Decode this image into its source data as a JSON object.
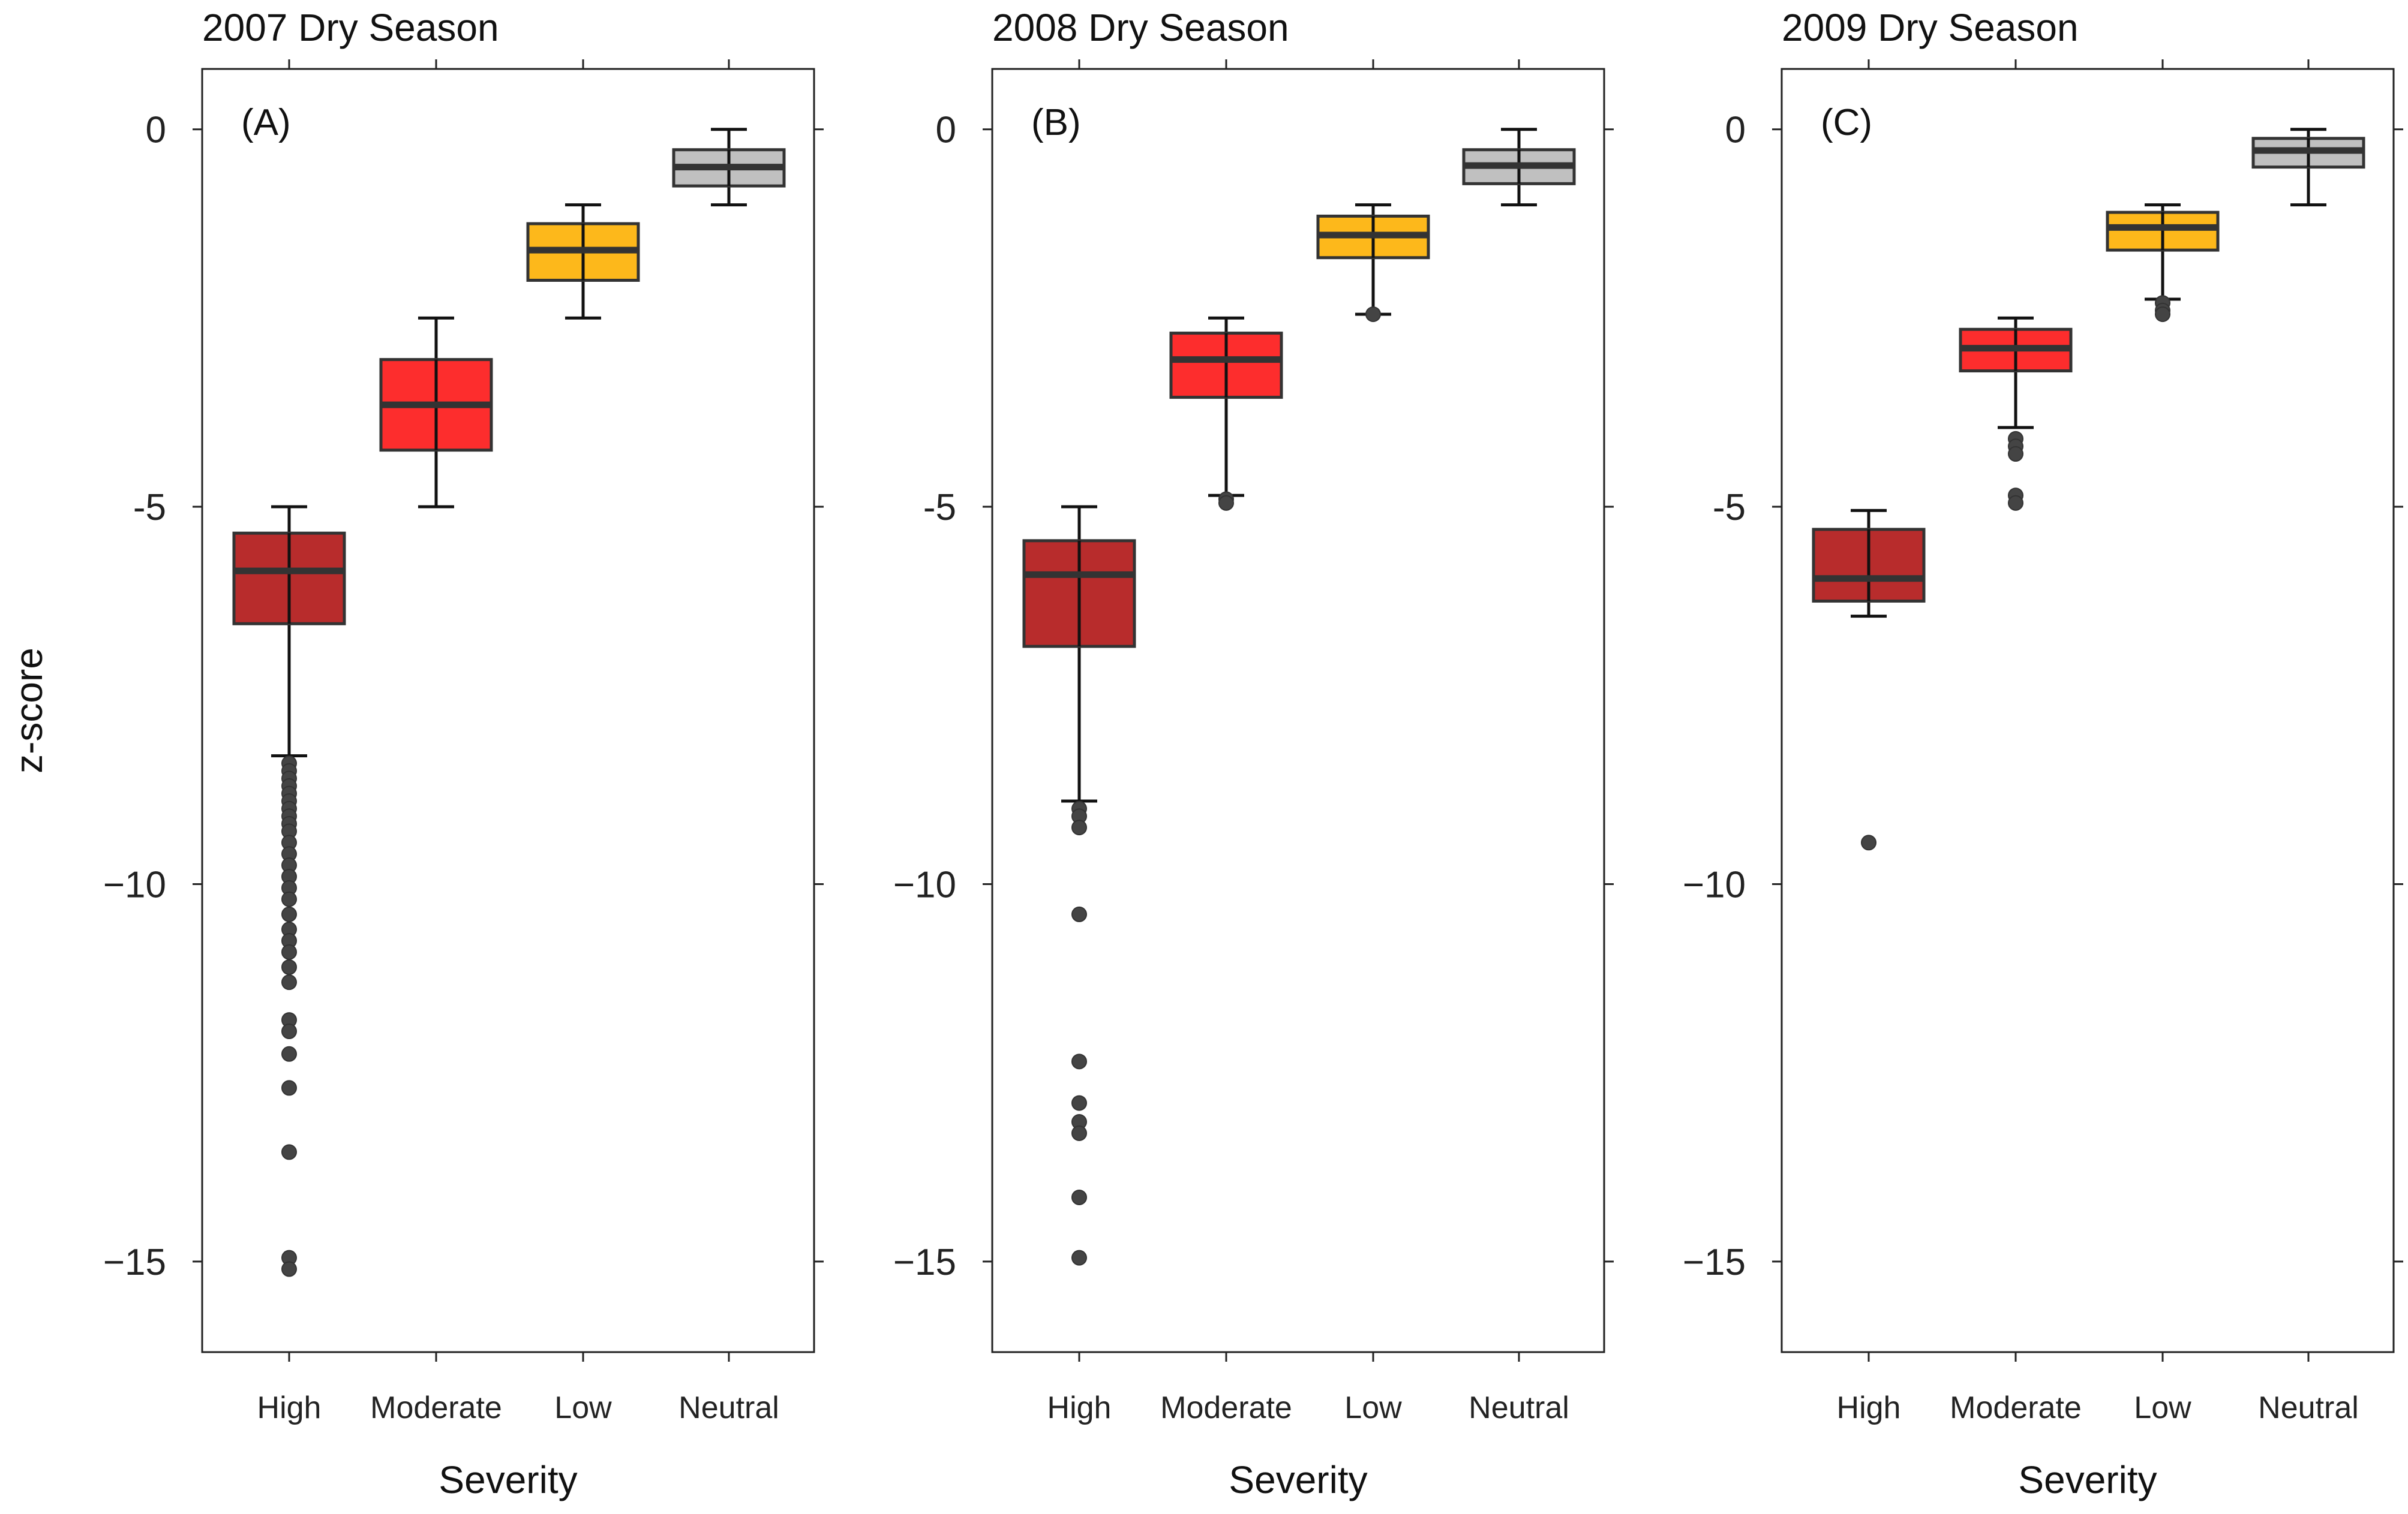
{
  "chart_data": [
    {
      "type": "boxplot",
      "title": "2007 Dry Season",
      "panel_label": "(A)",
      "xlabel": "Severity",
      "ylabel": "z-score",
      "categories": [
        "High",
        "Moderate",
        "Low",
        "Neutral"
      ],
      "colors": [
        "#b82c2c",
        "#fd2d2d",
        "#fdb81b",
        "#c0c0c0"
      ],
      "ylim": [
        -16.2,
        0.8
      ],
      "yticks": [
        0,
        -5,
        -10,
        -15
      ],
      "ytick_labels": [
        "0",
        "-5",
        "−10",
        "−15"
      ],
      "boxes": [
        {
          "category": "High",
          "q1": -6.55,
          "median": -5.85,
          "q3": -5.35,
          "whisker_low": -8.3,
          "whisker_high": -5.0,
          "outliers": [
            -8.4,
            -8.5,
            -8.6,
            -8.7,
            -8.8,
            -8.9,
            -9.0,
            -9.1,
            -9.2,
            -9.3,
            -9.45,
            -9.6,
            -9.75,
            -9.9,
            -10.05,
            -10.2,
            -10.4,
            -10.6,
            -10.75,
            -10.9,
            -11.1,
            -11.3,
            -11.8,
            -11.95,
            -12.25,
            -12.7,
            -13.55,
            -14.95,
            -15.1
          ]
        },
        {
          "category": "Moderate",
          "q1": -4.25,
          "median": -3.65,
          "q3": -3.05,
          "whisker_low": -5.0,
          "whisker_high": -2.5,
          "outliers": []
        },
        {
          "category": "Low",
          "q1": -2.0,
          "median": -1.6,
          "q3": -1.25,
          "whisker_low": -2.5,
          "whisker_high": -1.0,
          "outliers": []
        },
        {
          "category": "Neutral",
          "q1": -0.75,
          "median": -0.5,
          "q3": -0.27,
          "whisker_low": -1.0,
          "whisker_high": 0.0,
          "outliers": []
        }
      ]
    },
    {
      "type": "boxplot",
      "title": "2008 Dry Season",
      "panel_label": "(B)",
      "xlabel": "Severity",
      "ylabel": "",
      "categories": [
        "High",
        "Moderate",
        "Low",
        "Neutral"
      ],
      "colors": [
        "#b82c2c",
        "#fd2d2d",
        "#fdb81b",
        "#c0c0c0"
      ],
      "ylim": [
        -16.2,
        0.8
      ],
      "yticks": [
        0,
        -5,
        -10,
        -15
      ],
      "ytick_labels": [
        "0",
        "-5",
        "−10",
        "−15"
      ],
      "boxes": [
        {
          "category": "High",
          "q1": -6.85,
          "median": -5.9,
          "q3": -5.45,
          "whisker_low": -8.9,
          "whisker_high": -5.0,
          "outliers": [
            -9.0,
            -9.1,
            -9.25,
            -10.4,
            -12.35,
            -12.9,
            -13.15,
            -13.3,
            -14.15,
            -14.95
          ]
        },
        {
          "category": "Moderate",
          "q1": -3.55,
          "median": -3.05,
          "q3": -2.7,
          "whisker_low": -4.85,
          "whisker_high": -2.5,
          "outliers": [
            -4.9,
            -4.95
          ]
        },
        {
          "category": "Low",
          "q1": -1.7,
          "median": -1.4,
          "q3": -1.15,
          "whisker_low": -2.45,
          "whisker_high": -1.0,
          "outliers": [
            -2.45
          ]
        },
        {
          "category": "Neutral",
          "q1": -0.72,
          "median": -0.48,
          "q3": -0.27,
          "whisker_low": -1.0,
          "whisker_high": 0.0,
          "outliers": []
        }
      ]
    },
    {
      "type": "boxplot",
      "title": "2009 Dry Season",
      "panel_label": "(C)",
      "xlabel": "Severity",
      "ylabel": "",
      "categories": [
        "High",
        "Moderate",
        "Low",
        "Neutral"
      ],
      "colors": [
        "#b82c2c",
        "#fd2d2d",
        "#fdb81b",
        "#c0c0c0"
      ],
      "ylim": [
        -16.2,
        0.8
      ],
      "yticks": [
        0,
        -5,
        -10,
        -15
      ],
      "ytick_labels": [
        "0",
        "-5",
        "−10",
        "−15"
      ],
      "boxes": [
        {
          "category": "High",
          "q1": -6.25,
          "median": -5.95,
          "q3": -5.3,
          "whisker_low": -6.45,
          "whisker_high": -5.05,
          "outliers": [
            -9.45
          ]
        },
        {
          "category": "Moderate",
          "q1": -3.2,
          "median": -2.9,
          "q3": -2.65,
          "whisker_low": -3.95,
          "whisker_high": -2.5,
          "outliers": [
            -4.1,
            -4.2,
            -4.3,
            -4.85,
            -4.95
          ]
        },
        {
          "category": "Low",
          "q1": -1.6,
          "median": -1.3,
          "q3": -1.1,
          "whisker_low": -2.25,
          "whisker_high": -1.0,
          "outliers": [
            -2.3,
            -2.4,
            -2.45
          ]
        },
        {
          "category": "Neutral",
          "q1": -0.5,
          "median": -0.28,
          "q3": -0.12,
          "whisker_low": -1.0,
          "whisker_high": 0.0,
          "outliers": []
        }
      ]
    }
  ]
}
